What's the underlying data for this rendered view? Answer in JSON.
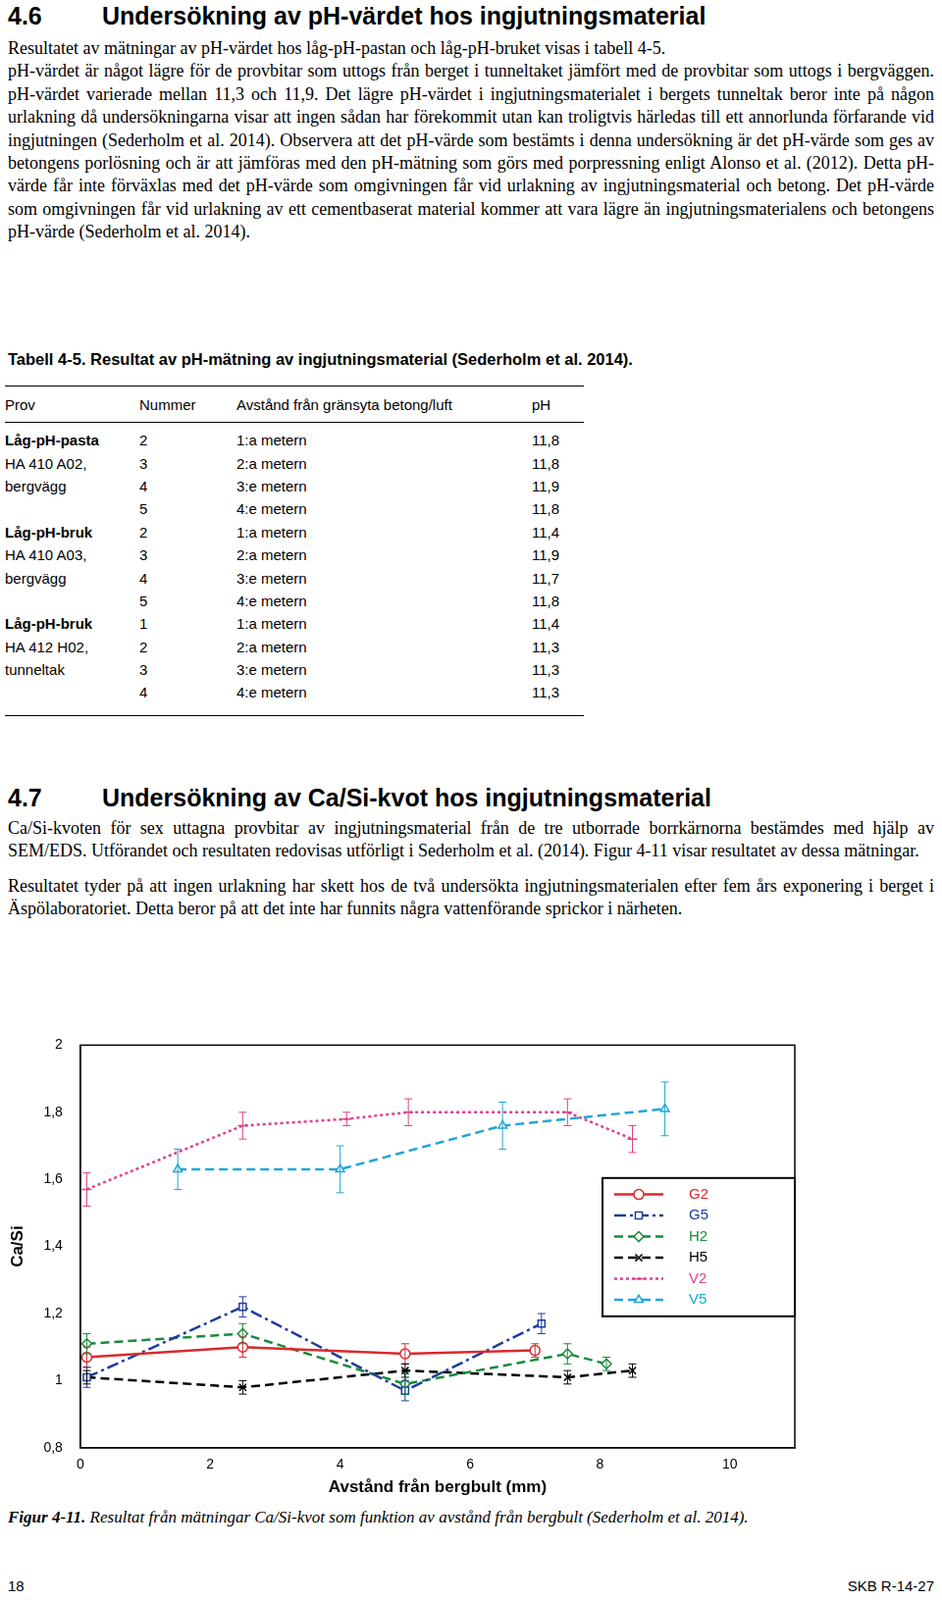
{
  "section_4_6": {
    "number": "4.6",
    "title": "Undersökning av pH-värdet hos ingjutningsmaterial",
    "paragraphs": [
      "Resultatet av mätningar av pH-värdet hos låg-pH-pastan och låg-pH-bruket visas i tabell 4-5.",
      "pH-värdet är något lägre för de provbitar som uttogs från berget i tunneltaket jämfört med de provbitar som uttogs i bergväggen. pH-värdet varierade mellan 11,3 och 11,9. Det lägre pH-värdet i ingjutningsmaterialet i bergets tunneltak beror inte på någon urlakning då undersökningarna visar att ingen sådan har förekommit utan kan troligtvis härledas till ett annorlunda förfarande vid ingjutningen (Sederholm et al. 2014). Observera att det pH-värde som bestämts i denna undersökning är det pH-värde som ges av betongens porlösning och är att jämföras med den pH-mätning som görs med porpressning enligt Alonso et al. (2012). Detta pH-värde får inte förväxlas med det pH-värde som omgivningen får vid urlakning av ingjutningsmaterial och betong. Det pH-värde som omgivningen får vid urlakning av ett cementbaserat material kommer att vara lägre än ingjutningsmaterialens och betongens pH-värde (Sederholm et al. 2014)."
    ]
  },
  "table": {
    "caption": "Tabell 4-5. Resultat av pH-mätning av ingjutningsmaterial (Sederholm et al. 2014).",
    "header": [
      "Prov",
      "Nummer",
      "Avstånd från gränsyta betong/luft",
      "pH"
    ],
    "groups": [
      {
        "prov": [
          "Låg-pH-pasta",
          "HA 410 A02,",
          "bergvägg"
        ],
        "rows": [
          [
            "2",
            "1:a metern",
            "11,8"
          ],
          [
            "3",
            "2:a metern",
            "11,8"
          ],
          [
            "4",
            "3:e metern",
            "11,9"
          ],
          [
            "5",
            "4:e metern",
            "11,8"
          ]
        ]
      },
      {
        "prov": [
          "Låg-pH-bruk",
          "HA 410 A03,",
          "bergvägg"
        ],
        "rows": [
          [
            "2",
            "1:a metern",
            "11,4"
          ],
          [
            "3",
            "2:a metern",
            "11,9"
          ],
          [
            "4",
            "3:e metern",
            "11,7"
          ],
          [
            "5",
            "4:e metern",
            "11,8"
          ]
        ]
      },
      {
        "prov": [
          "Låg-pH-bruk",
          "HA 412 H02,",
          "tunneltak"
        ],
        "rows": [
          [
            "1",
            "1:a metern",
            "11,4"
          ],
          [
            "2",
            "2:a metern",
            "11,3"
          ],
          [
            "3",
            "3:e metern",
            "11,3"
          ],
          [
            "4",
            "4:e metern",
            "11,3"
          ]
        ]
      }
    ]
  },
  "section_4_7": {
    "number": "4.7",
    "title": "Undersökning av Ca/Si-kvot hos ingjutningsmaterial",
    "paragraphs": [
      "Ca/Si-kvoten för sex uttagna provbitar av ingjutningsmaterial från de tre utborrade borrkärnorna bestämdes med hjälp av SEM/EDS. Utförandet och resultaten redovisas utförligt i Sederholm et al. (2014). Figur 4-11 visar resultatet av dessa mätningar.",
      "Resultatet tyder på att ingen urlakning har skett hos de två undersökta ingjutningsmaterialen efter fem års exponering i berget i Äspölaboratoriet. Detta beror på att det inte har funnits några vattenförande sprickor i närheten."
    ]
  },
  "chart_data": {
    "type": "line",
    "x_label": "Avstånd från bergbult (mm)",
    "y_label": "Ca/Si",
    "xlim": [
      0,
      11
    ],
    "xticks": [
      0,
      2,
      4,
      6,
      8,
      10
    ],
    "ylim": [
      0.8,
      2
    ],
    "yticks": [
      {
        "value": 0.8,
        "label": "0,8"
      },
      1,
      {
        "value": 1.2,
        "label": "1,2"
      },
      {
        "value": 1.4,
        "label": "1,4"
      },
      {
        "value": 1.6,
        "label": "1,6"
      },
      {
        "value": 1.8,
        "label": "1,8"
      },
      2
    ],
    "grid": false,
    "legend": "right",
    "series": [
      {
        "name": "G2",
        "color": "#d9292f",
        "marker": "circle",
        "line_style": "solid",
        "x": [
          0.1,
          2.5,
          5.0,
          7.0
        ],
        "values": [
          1.07,
          1.1,
          1.08,
          1.09
        ],
        "errors": [
          0.03,
          0.03,
          0.03,
          0.02
        ]
      },
      {
        "name": "G5",
        "color": "#1f3c9e",
        "marker": "square",
        "line_style": "dashdot",
        "x": [
          0.1,
          2.5,
          5.0,
          7.1
        ],
        "values": [
          1.01,
          1.22,
          0.97,
          1.17
        ],
        "errors": [
          0.03,
          0.03,
          0.03,
          0.03
        ]
      },
      {
        "name": "H2",
        "color": "#1a8a3c",
        "marker": "diamond",
        "line_style": "dashed",
        "x": [
          0.1,
          2.5,
          5.0,
          7.5,
          8.1
        ],
        "values": [
          1.11,
          1.14,
          0.99,
          1.08,
          1.05
        ],
        "errors": [
          0.03,
          0.03,
          0.03,
          0.03,
          0.02
        ]
      },
      {
        "name": "H5",
        "color": "#000000",
        "marker": "x",
        "line_style": "dashed",
        "x": [
          0.1,
          2.5,
          5.0,
          7.5,
          8.5
        ],
        "values": [
          1.01,
          0.98,
          1.03,
          1.01,
          1.03
        ],
        "errors": [
          0.02,
          0.02,
          0.02,
          0.02,
          0.02
        ]
      },
      {
        "name": "V2",
        "color": "#e0408a",
        "marker": "dash",
        "line_style": "dotted",
        "x": [
          0.1,
          2.5,
          4.1,
          5.05,
          7.5,
          8.5
        ],
        "values": [
          1.57,
          1.76,
          1.78,
          1.8,
          1.8,
          1.72
        ],
        "errors": [
          0.05,
          0.04,
          0.02,
          0.04,
          0.04,
          0.04
        ]
      },
      {
        "name": "V5",
        "color": "#1ea7d6",
        "marker": "triangle",
        "line_style": "dashed",
        "x": [
          1.5,
          4.0,
          6.5,
          9.0
        ],
        "values": [
          1.63,
          1.63,
          1.76,
          1.81
        ],
        "errors": [
          0.06,
          0.07,
          0.07,
          0.08
        ]
      }
    ]
  },
  "figure_caption": {
    "label": "Figur 4-11.",
    "text": "Resultat från mätningar Ca/Si-kvot som funktion av avstånd från bergbult (Sederholm et al. 2014)."
  },
  "footer": {
    "page": "18",
    "report": "SKB R-14-27"
  }
}
